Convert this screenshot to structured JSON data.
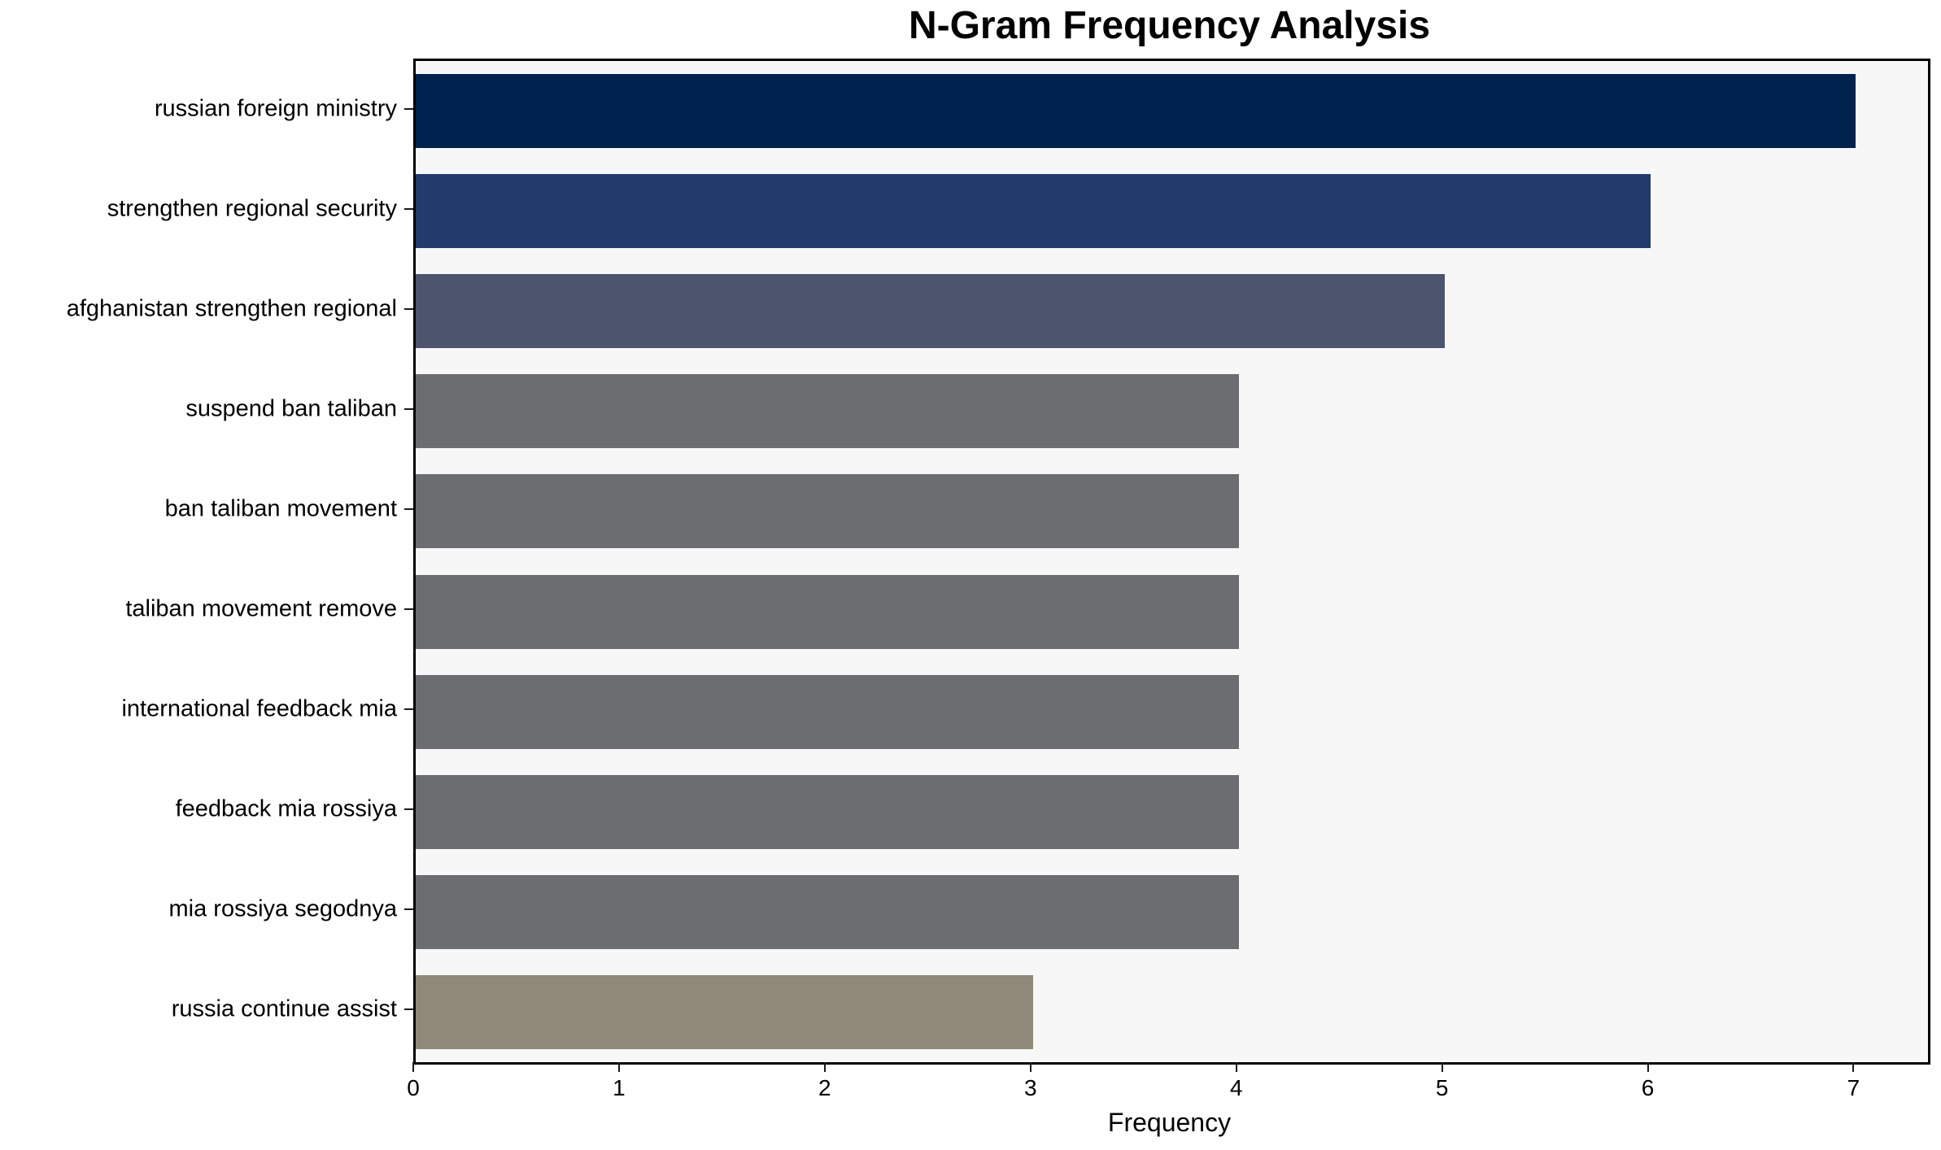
{
  "chart_data": {
    "type": "bar",
    "orientation": "horizontal",
    "title": "N-Gram Frequency Analysis",
    "xlabel": "Frequency",
    "ylabel": "",
    "categories": [
      "russian foreign ministry",
      "strengthen regional security",
      "afghanistan strengthen regional",
      "suspend ban taliban",
      "ban taliban movement",
      "taliban movement remove",
      "international feedback mia",
      "feedback mia rossiya",
      "mia rossiya segodnya",
      "russia continue assist"
    ],
    "values": [
      7,
      6,
      5,
      4,
      4,
      4,
      4,
      4,
      4,
      3
    ],
    "bar_colors": [
      "#00224E",
      "#233B6C",
      "#4C546E",
      "#6B6D71",
      "#6B6D71",
      "#6B6D71",
      "#6B6D71",
      "#6B6D71",
      "#6B6D71",
      "#8E8978"
    ],
    "xlim": [
      0,
      7.35
    ],
    "xticks": [
      "0",
      "1",
      "2",
      "3",
      "4",
      "5",
      "6",
      "7"
    ],
    "grid": false,
    "legend": null,
    "plot_background": "#F7F7F7",
    "figure_background": "#FFFFFF",
    "axis_color": "#000000",
    "text_color": "#000000"
  }
}
